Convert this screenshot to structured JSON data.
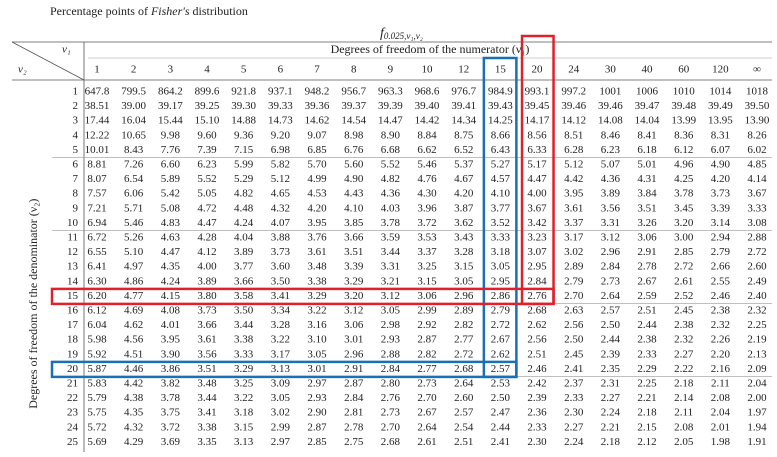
{
  "header": {
    "title_prefix": "Percentage points of ",
    "title_emphasis": "Fisher's",
    "title_suffix": " distribution",
    "symbol": "f",
    "symbol_subscript": "0.025,ν₁,ν₂"
  },
  "table": {
    "column_group_label": "Degrees of freedom of the numerator (ν₁)",
    "row_group_label": "Degrees of freedom of the denominator (ν₂)",
    "corner_column_symbol": "ν₁",
    "corner_row_symbol": "ν₂",
    "columns": [
      "1",
      "2",
      "3",
      "4",
      "5",
      "6",
      "7",
      "8",
      "9",
      "10",
      "12",
      "15",
      "20",
      "24",
      "30",
      "40",
      "60",
      "120",
      "∞"
    ],
    "rows": [
      {
        "v2": "1",
        "values": [
          "647.8",
          "799.5",
          "864.2",
          "899.6",
          "921.8",
          "937.1",
          "948.2",
          "956.7",
          "963.3",
          "968.6",
          "976.7",
          "984.9",
          "993.1",
          "997.2",
          "1001",
          "1006",
          "1010",
          "1014",
          "1018"
        ]
      },
      {
        "v2": "2",
        "values": [
          "38.51",
          "39.00",
          "39.17",
          "39.25",
          "39.30",
          "39.33",
          "39.36",
          "39.37",
          "39.39",
          "39.40",
          "39.41",
          "39.43",
          "39.45",
          "39.46",
          "39.46",
          "39.47",
          "39.48",
          "39.49",
          "39.50"
        ]
      },
      {
        "v2": "3",
        "values": [
          "17.44",
          "16.04",
          "15.44",
          "15.10",
          "14.88",
          "14.73",
          "14.62",
          "14.54",
          "14.47",
          "14.42",
          "14.34",
          "14.25",
          "14.17",
          "14.12",
          "14.08",
          "14.04",
          "13.99",
          "13.95",
          "13.90"
        ]
      },
      {
        "v2": "4",
        "values": [
          "12.22",
          "10.65",
          "9.98",
          "9.60",
          "9.36",
          "9.20",
          "9.07",
          "8.98",
          "8.90",
          "8.84",
          "8.75",
          "8.66",
          "8.56",
          "8.51",
          "8.46",
          "8.41",
          "8.36",
          "8.31",
          "8.26"
        ]
      },
      {
        "v2": "5",
        "values": [
          "10.01",
          "8.43",
          "7.76",
          "7.39",
          "7.15",
          "6.98",
          "6.85",
          "6.76",
          "6.68",
          "6.62",
          "6.52",
          "6.43",
          "6.33",
          "6.28",
          "6.23",
          "6.18",
          "6.12",
          "6.07",
          "6.02"
        ]
      },
      {
        "v2": "6",
        "values": [
          "8.81",
          "7.26",
          "6.60",
          "6.23",
          "5.99",
          "5.82",
          "5.70",
          "5.60",
          "5.52",
          "5.46",
          "5.37",
          "5.27",
          "5.17",
          "5.12",
          "5.07",
          "5.01",
          "4.96",
          "4.90",
          "4.85"
        ]
      },
      {
        "v2": "7",
        "values": [
          "8.07",
          "6.54",
          "5.89",
          "5.52",
          "5.29",
          "5.12",
          "4.99",
          "4.90",
          "4.82",
          "4.76",
          "4.67",
          "4.57",
          "4.47",
          "4.42",
          "4.36",
          "4.31",
          "4.25",
          "4.20",
          "4.14"
        ]
      },
      {
        "v2": "8",
        "values": [
          "7.57",
          "6.06",
          "5.42",
          "5.05",
          "4.82",
          "4.65",
          "4.53",
          "4.43",
          "4.36",
          "4.30",
          "4.20",
          "4.10",
          "4.00",
          "3.95",
          "3.89",
          "3.84",
          "3.78",
          "3.73",
          "3.67"
        ]
      },
      {
        "v2": "9",
        "values": [
          "7.21",
          "5.71",
          "5.08",
          "4.72",
          "4.48",
          "4.32",
          "4.20",
          "4.10",
          "4.03",
          "3.96",
          "3.87",
          "3.77",
          "3.67",
          "3.61",
          "3.56",
          "3.51",
          "3.45",
          "3.39",
          "3.33"
        ]
      },
      {
        "v2": "10",
        "values": [
          "6.94",
          "5.46",
          "4.83",
          "4.47",
          "4.24",
          "4.07",
          "3.95",
          "3.85",
          "3.78",
          "3.72",
          "3.62",
          "3.52",
          "3.42",
          "3.37",
          "3.31",
          "3.26",
          "3.20",
          "3.14",
          "3.08"
        ]
      },
      {
        "v2": "11",
        "values": [
          "6.72",
          "5.26",
          "4.63",
          "4.28",
          "4.04",
          "3.88",
          "3.76",
          "3.66",
          "3.59",
          "3.53",
          "3.43",
          "3.33",
          "3.23",
          "3.17",
          "3.12",
          "3.06",
          "3.00",
          "2.94",
          "2.88"
        ]
      },
      {
        "v2": "12",
        "values": [
          "6.55",
          "5.10",
          "4.47",
          "4.12",
          "3.89",
          "3.73",
          "3.61",
          "3.51",
          "3.44",
          "3.37",
          "3.28",
          "3.18",
          "3.07",
          "3.02",
          "2.96",
          "2.91",
          "2.85",
          "2.79",
          "2.72"
        ]
      },
      {
        "v2": "13",
        "values": [
          "6.41",
          "4.97",
          "4.35",
          "4.00",
          "3.77",
          "3.60",
          "3.48",
          "3.39",
          "3.31",
          "3.25",
          "3.15",
          "3.05",
          "2.95",
          "2.89",
          "2.84",
          "2.78",
          "2.72",
          "2.66",
          "2.60"
        ]
      },
      {
        "v2": "14",
        "values": [
          "6.30",
          "4.86",
          "4.24",
          "3.89",
          "3.66",
          "3.50",
          "3.38",
          "3.29",
          "3.21",
          "3.15",
          "3.05",
          "2.95",
          "2.84",
          "2.79",
          "2.73",
          "2.67",
          "2.61",
          "2.55",
          "2.49"
        ]
      },
      {
        "v2": "15",
        "values": [
          "6.20",
          "4.77",
          "4.15",
          "3.80",
          "3.58",
          "3.41",
          "3.29",
          "3.20",
          "3.12",
          "3.06",
          "2.96",
          "2.86",
          "2.76",
          "2.70",
          "2.64",
          "2.59",
          "2.52",
          "2.46",
          "2.40"
        ]
      },
      {
        "v2": "16",
        "values": [
          "6.12",
          "4.69",
          "4.08",
          "3.73",
          "3.50",
          "3.34",
          "3.22",
          "3.12",
          "3.05",
          "2.99",
          "2.89",
          "2.79",
          "2.68",
          "2.63",
          "2.57",
          "2.51",
          "2.45",
          "2.38",
          "2.32"
        ]
      },
      {
        "v2": "17",
        "values": [
          "6.04",
          "4.62",
          "4.01",
          "3.66",
          "3.44",
          "3.28",
          "3.16",
          "3.06",
          "2.98",
          "2.92",
          "2.82",
          "2.72",
          "2.62",
          "2.56",
          "2.50",
          "2.44",
          "2.38",
          "2.32",
          "2.25"
        ]
      },
      {
        "v2": "18",
        "values": [
          "5.98",
          "4.56",
          "3.95",
          "3.61",
          "3.38",
          "3.22",
          "3.10",
          "3.01",
          "2.93",
          "2.87",
          "2.77",
          "2.67",
          "2.56",
          "2.50",
          "2.44",
          "2.38",
          "2.32",
          "2.26",
          "2.19"
        ]
      },
      {
        "v2": "19",
        "values": [
          "5.92",
          "4.51",
          "3.90",
          "3.56",
          "3.33",
          "3.17",
          "3.05",
          "2.96",
          "2.88",
          "2.82",
          "2.72",
          "2.62",
          "2.51",
          "2.45",
          "2.39",
          "2.33",
          "2.27",
          "2.20",
          "2.13"
        ]
      },
      {
        "v2": "20",
        "values": [
          "5.87",
          "4.46",
          "3.86",
          "3.51",
          "3.29",
          "3.13",
          "3.01",
          "2.91",
          "2.84",
          "2.77",
          "2.68",
          "2.57",
          "2.46",
          "2.41",
          "2.35",
          "2.29",
          "2.22",
          "2.16",
          "2.09"
        ]
      },
      {
        "v2": "21",
        "values": [
          "5.83",
          "4.42",
          "3.82",
          "3.48",
          "3.25",
          "3.09",
          "2.97",
          "2.87",
          "2.80",
          "2.73",
          "2.64",
          "2.53",
          "2.42",
          "2.37",
          "2.31",
          "2.25",
          "2.18",
          "2.11",
          "2.04"
        ]
      },
      {
        "v2": "22",
        "values": [
          "5.79",
          "4.38",
          "3.78",
          "3.44",
          "3.22",
          "3.05",
          "2.93",
          "2.84",
          "2.76",
          "2.70",
          "2.60",
          "2.50",
          "2.39",
          "2.33",
          "2.27",
          "2.21",
          "2.14",
          "2.08",
          "2.00"
        ]
      },
      {
        "v2": "23",
        "values": [
          "5.75",
          "4.35",
          "3.75",
          "3.41",
          "3.18",
          "3.02",
          "2.90",
          "2.81",
          "2.73",
          "2.67",
          "2.57",
          "2.47",
          "2.36",
          "2.30",
          "2.24",
          "2.18",
          "2.11",
          "2.04",
          "1.97"
        ]
      },
      {
        "v2": "24",
        "values": [
          "5.72",
          "4.32",
          "3.72",
          "3.38",
          "3.15",
          "2.99",
          "2.87",
          "2.78",
          "2.70",
          "2.64",
          "2.54",
          "2.44",
          "2.33",
          "2.27",
          "2.21",
          "2.15",
          "2.08",
          "2.01",
          "1.94"
        ]
      },
      {
        "v2": "25",
        "values": [
          "5.69",
          "4.29",
          "3.69",
          "3.35",
          "3.13",
          "2.97",
          "2.85",
          "2.75",
          "2.68",
          "2.61",
          "2.51",
          "2.41",
          "2.30",
          "2.24",
          "2.18",
          "2.12",
          "2.05",
          "1.98",
          "1.91"
        ]
      }
    ]
  }
}
